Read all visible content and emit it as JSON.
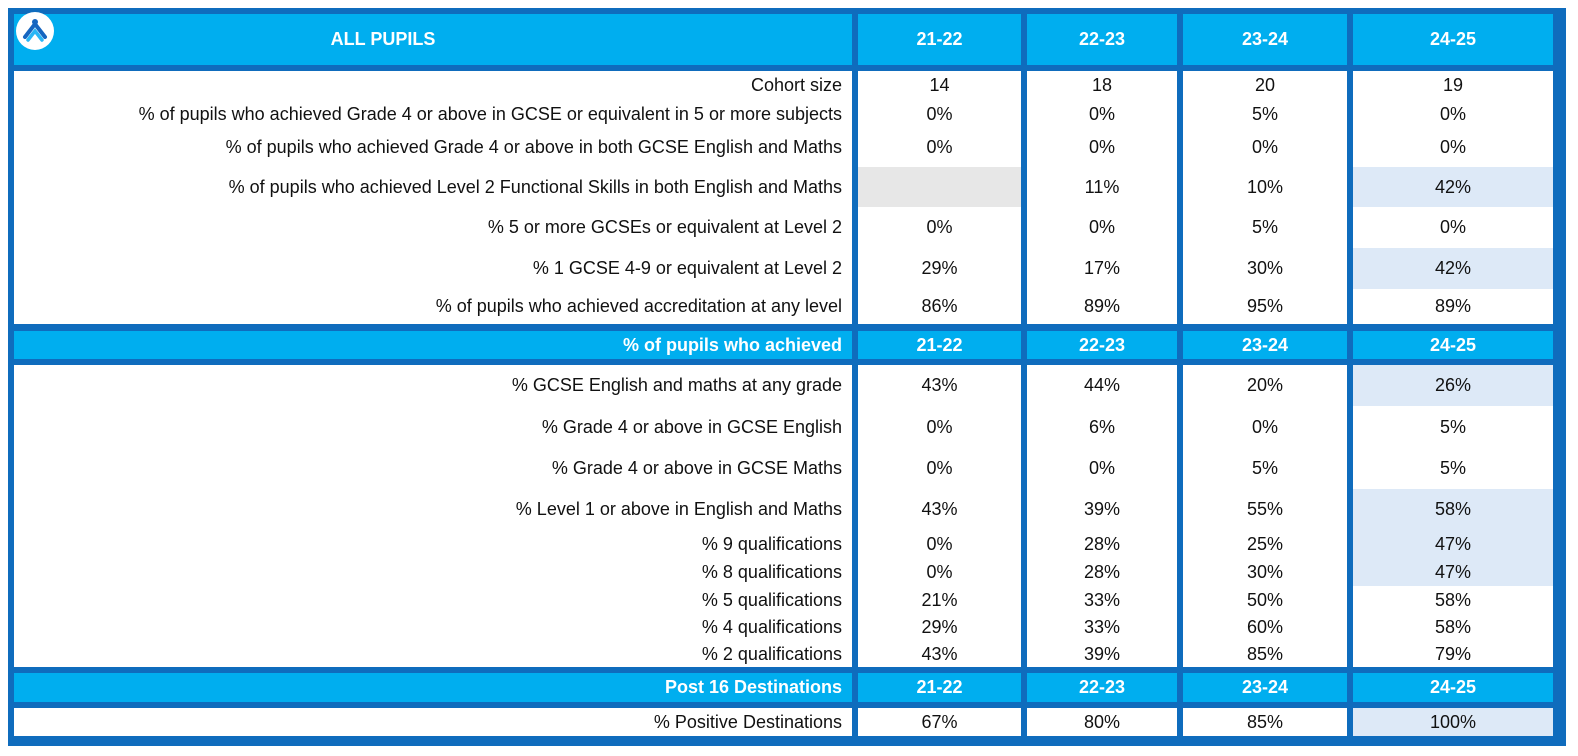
{
  "title": "ALL PUPILS",
  "years": [
    "21-22",
    "22-23",
    "23-24",
    "24-25"
  ],
  "section1": {
    "rows": [
      {
        "label": "Cohort size",
        "values": [
          "14",
          "18",
          "20",
          "19"
        ]
      },
      {
        "label": "% of pupils who achieved Grade 4 or above in GCSE or equivalent in 5 or more subjects",
        "values": [
          "0%",
          "0%",
          "5%",
          "0%"
        ]
      },
      {
        "label": "% of pupils who achieved Grade 4 or above in both GCSE English and Maths",
        "values": [
          "0%",
          "0%",
          "0%",
          "0%"
        ]
      },
      {
        "label": "% of pupils who achieved Level 2 Functional Skills in both English and Maths",
        "values": [
          "",
          "11%",
          "10%",
          "42%"
        ]
      },
      {
        "label": "% 5 or more GCSEs or equivalent at Level 2",
        "values": [
          "0%",
          "0%",
          "5%",
          "0%"
        ]
      },
      {
        "label": "% 1 GCSE 4-9 or equivalent at Level 2",
        "values": [
          "29%",
          "17%",
          "30%",
          "42%"
        ]
      },
      {
        "label": "% of pupils who achieved accreditation at any level",
        "values": [
          "86%",
          "89%",
          "95%",
          "89%"
        ]
      }
    ]
  },
  "section2": {
    "header": "% of pupils who achieved",
    "rows": [
      {
        "label": "% GCSE English and maths at any grade",
        "values": [
          "43%",
          "44%",
          "20%",
          "26%"
        ]
      },
      {
        "label": "% Grade 4 or above in GCSE English",
        "values": [
          "0%",
          "6%",
          "0%",
          "5%"
        ]
      },
      {
        "label": "% Grade 4 or above in GCSE Maths",
        "values": [
          "0%",
          "0%",
          "5%",
          "5%"
        ]
      },
      {
        "label": "% Level 1 or above in English and Maths",
        "values": [
          "43%",
          "39%",
          "55%",
          "58%"
        ]
      },
      {
        "label": "% 9 qualifications",
        "values": [
          "0%",
          "28%",
          "25%",
          "47%"
        ]
      },
      {
        "label": "% 8 qualifications",
        "values": [
          "0%",
          "28%",
          "30%",
          "47%"
        ]
      },
      {
        "label": "% 5 qualifications",
        "values": [
          "21%",
          "33%",
          "50%",
          "58%"
        ]
      },
      {
        "label": "% 4 qualifications",
        "values": [
          "29%",
          "33%",
          "60%",
          "58%"
        ]
      },
      {
        "label": "% 2 qualifications",
        "values": [
          "43%",
          "39%",
          "85%",
          "79%"
        ]
      }
    ]
  },
  "section3": {
    "header": "Post 16 Destinations",
    "rows": [
      {
        "label": "% Positive Destinations",
        "values": [
          "67%",
          "80%",
          "85%",
          "100%"
        ]
      }
    ]
  },
  "colors": {
    "border": "#0f6cbd",
    "header": "#00aeef",
    "highlight": "#dde9f7",
    "empty": "#e7e7e7"
  },
  "logo_icon": "school-logo-icon"
}
